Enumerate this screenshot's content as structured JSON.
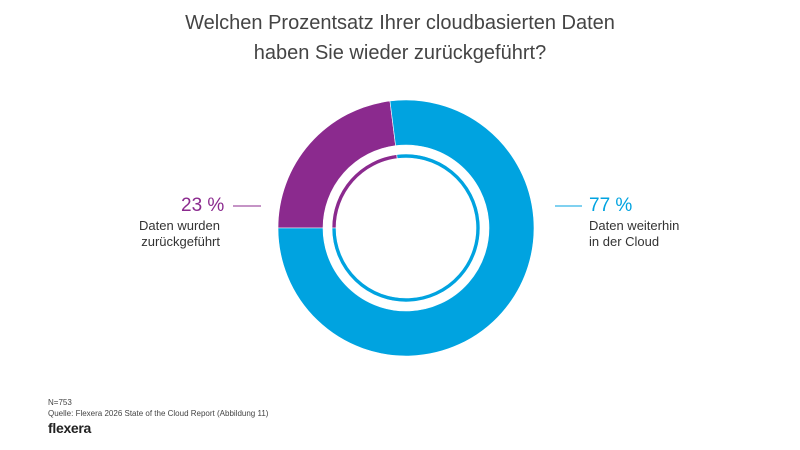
{
  "title_line1": "Welchen Prozentsatz Ihrer cloudbasierten Daten",
  "title_line2": "haben Sie wieder zurückgeführt?",
  "chart_data": {
    "type": "pie",
    "variant": "donut",
    "title": "Welchen Prozentsatz Ihrer cloudbasierten Daten haben Sie wieder zurückgeführt?",
    "series": [
      {
        "name": "Daten wurden zurückgeführt",
        "value": 23,
        "label": "23 %",
        "color": "#8B2A8E",
        "label_line1": "Daten wurden",
        "label_line2": "zurückgeführt"
      },
      {
        "name": "Daten weiterhin in der Cloud",
        "value": 77,
        "label": "77 %",
        "color": "#00A3E0",
        "label_line1": "Daten weiterhin",
        "label_line2": "in der Cloud"
      }
    ]
  },
  "footer": {
    "sample": "N=753",
    "source": "Quelle: Flexera 2026 State of the Cloud Report (Abbildung 11)",
    "logo": "flexera"
  }
}
